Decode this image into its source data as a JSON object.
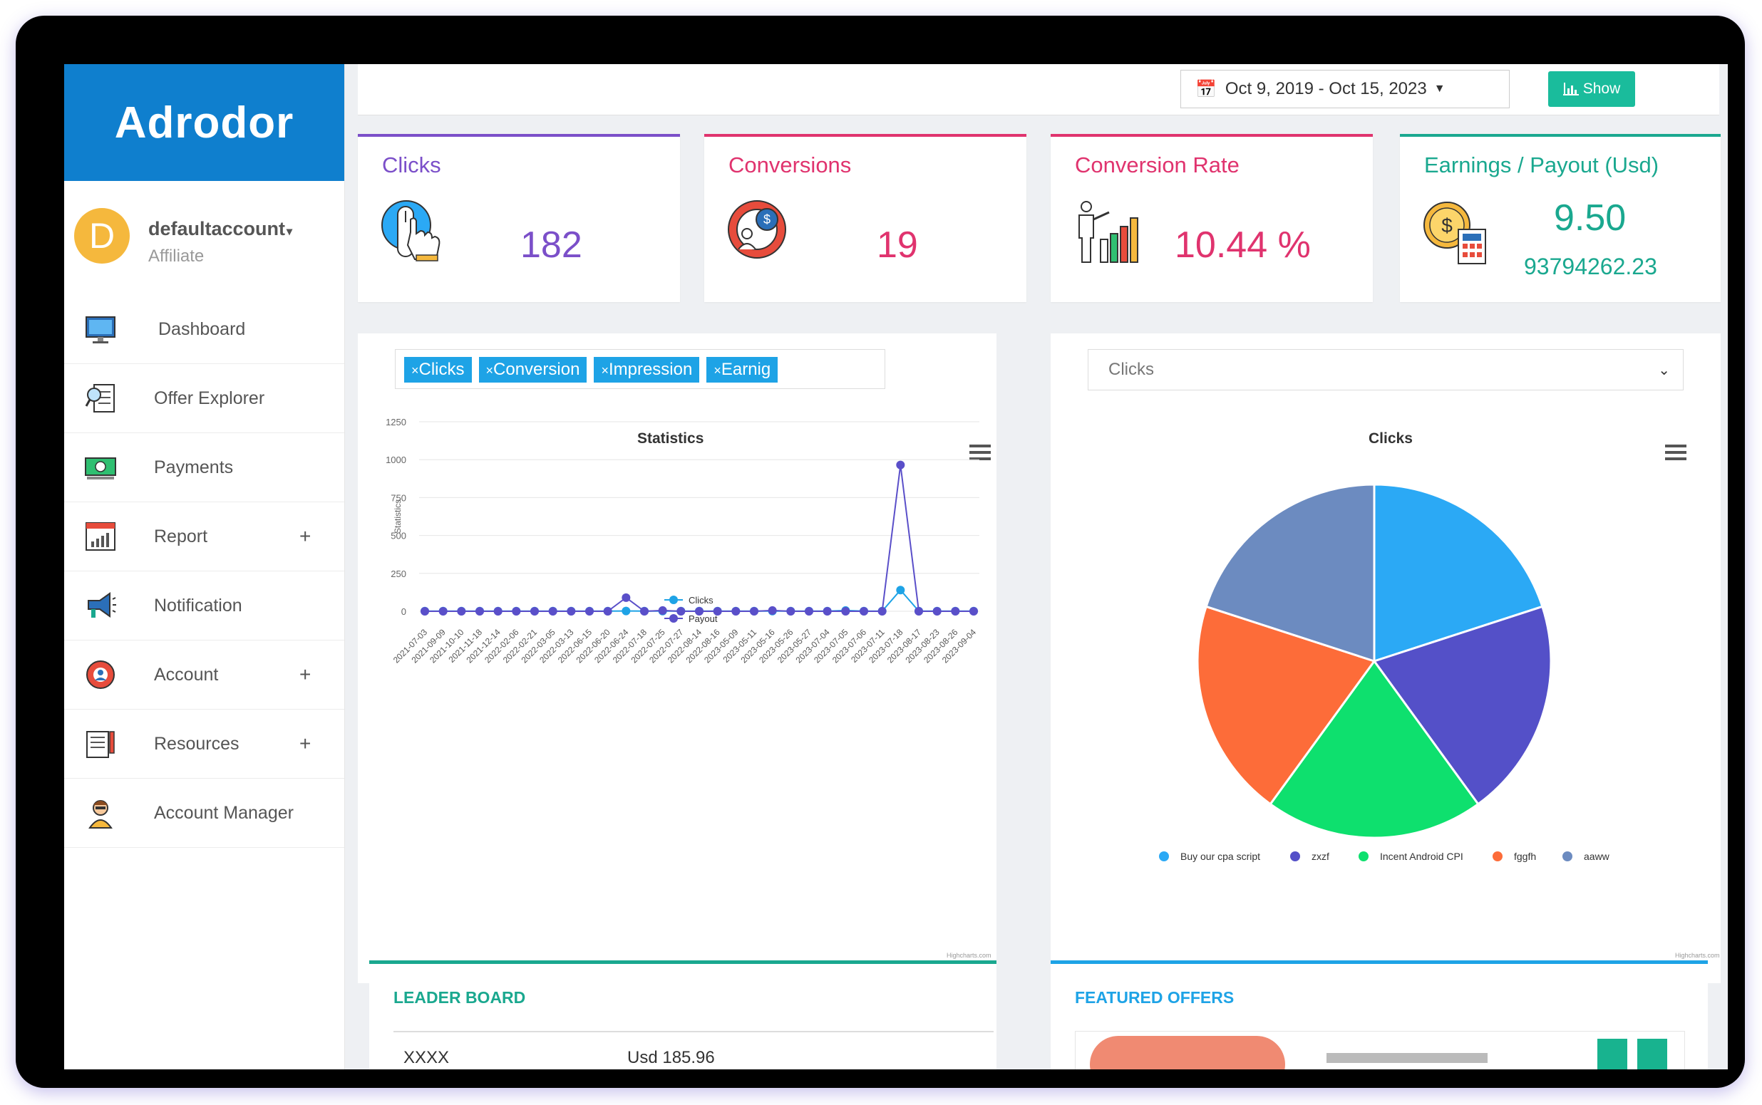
{
  "brand": "Adrodor",
  "user": {
    "initial": "D",
    "name": "defaultaccount",
    "role": "Affiliate"
  },
  "nav": [
    {
      "label": "Dashboard",
      "icon": "monitor-icon",
      "plus": ""
    },
    {
      "label": "Offer Explorer",
      "icon": "offer-search-icon",
      "plus": ""
    },
    {
      "label": "Payments",
      "icon": "money-icon",
      "plus": ""
    },
    {
      "label": "Report",
      "icon": "report-chart-icon",
      "plus": "+"
    },
    {
      "label": "Notification",
      "icon": "megaphone-icon",
      "plus": ""
    },
    {
      "label": "Account",
      "icon": "account-gear-icon",
      "plus": "+"
    },
    {
      "label": "Resources",
      "icon": "resources-doc-icon",
      "plus": "+"
    },
    {
      "label": "Account Manager",
      "icon": "manager-person-icon",
      "plus": ""
    }
  ],
  "toolbar": {
    "daterange": "Oct 9, 2019 - Oct 15, 2023",
    "show_label": "Show"
  },
  "stats": {
    "clicks": {
      "title": "Clicks",
      "value": "182",
      "color": "#7b4fc9"
    },
    "conversions": {
      "title": "Conversions",
      "value": "19",
      "color": "#e0336e"
    },
    "conversion_rate": {
      "title": "Conversion Rate",
      "value": "10.44 %",
      "color": "#e0336e"
    },
    "earnings": {
      "title": "Earnings / Payout (Usd)",
      "value": "9.50",
      "sub": "93794262.23",
      "color": "#1aa88f"
    }
  },
  "filters": [
    "Clicks",
    "Conversion",
    "Impression",
    "Earnig"
  ],
  "filter_remove_glyph": "×",
  "statistics_chart": {
    "title": "Statistics",
    "ylabel": "Statistics",
    "credit": "Highcharts.com",
    "chart_data": {
      "type": "line",
      "title": "Statistics",
      "ylabel": "Statistics",
      "ylim": [
        0,
        1250
      ],
      "yticks": [
        "0",
        "250",
        "500",
        "750",
        "1000",
        "1250"
      ],
      "categories": [
        "2021-07-03",
        "2021-09-09",
        "2021-10-10",
        "2021-11-18",
        "2021-12-14",
        "2022-02-06",
        "2022-02-21",
        "2022-03-05",
        "2022-03-13",
        "2022-06-15",
        "2022-06-20",
        "2022-06-24",
        "2022-07-18",
        "2022-07-25",
        "2022-07-27",
        "2022-08-14",
        "2022-08-16",
        "2023-05-09",
        "2023-05-11",
        "2023-05-16",
        "2023-05-26",
        "2023-05-27",
        "2023-07-04",
        "2023-07-05",
        "2023-07-06",
        "2023-07-11",
        "2023-07-18",
        "2023-08-17",
        "2023-08-23",
        "2023-08-26",
        "2023-09-04"
      ],
      "series": [
        {
          "name": "Clicks",
          "color": "#1ea3e6",
          "values": [
            1,
            1,
            1,
            1,
            1,
            1,
            1,
            1,
            1,
            1,
            1,
            2,
            1,
            1,
            1,
            1,
            1,
            1,
            1,
            1,
            1,
            1,
            1,
            5,
            1,
            1,
            140,
            1,
            1,
            1,
            1
          ]
        },
        {
          "name": "Payout",
          "color": "#5a4fc9",
          "values": [
            0,
            0,
            0,
            0,
            0,
            0,
            0,
            0,
            0,
            0,
            0,
            90,
            0,
            5,
            0,
            0,
            0,
            0,
            0,
            5,
            0,
            0,
            0,
            0,
            0,
            0,
            965,
            0,
            0,
            0,
            0
          ]
        }
      ]
    }
  },
  "pie_selector": {
    "selected": "Clicks"
  },
  "clicks_chart": {
    "title": "Clicks",
    "credit": "Highcharts.com",
    "chart_data": {
      "type": "pie",
      "title": "Clicks",
      "slices": [
        {
          "name": "Buy our cpa script",
          "value": 20,
          "color": "#2ba9f5"
        },
        {
          "name": "zxzf",
          "value": 20,
          "color": "#5450c8"
        },
        {
          "name": "Incent Android CPI",
          "value": 20,
          "color": "#0ee06e"
        },
        {
          "name": "fggfh",
          "value": 20,
          "color": "#fd6c39"
        },
        {
          "name": "aaww",
          "value": 20,
          "color": "#6c8bc0"
        }
      ]
    }
  },
  "leaderboard": {
    "title": "LEADER BOARD",
    "rows": [
      {
        "name": "XXXX",
        "amount": "Usd 185.96"
      }
    ]
  },
  "featured": {
    "title": "FEATURED OFFERS"
  }
}
